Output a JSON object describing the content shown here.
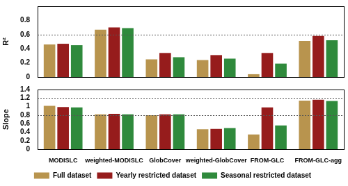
{
  "chart_data": [
    {
      "type": "bar",
      "y_label": "R²",
      "categories": [
        "MODISLC",
        "weighted-MODISLC",
        "GlobCover",
        "weighted-GlobCover",
        "FROM-GLC",
        "FROM-GLC-agg"
      ],
      "series": [
        {
          "name": "Full dataset",
          "color": "#b8944e",
          "values": [
            0.46,
            0.67,
            0.25,
            0.24,
            0.04,
            0.51
          ]
        },
        {
          "name": "Yearly restricted dataset",
          "color": "#961c1c",
          "values": [
            0.47,
            0.7,
            0.34,
            0.31,
            0.34,
            0.58
          ]
        },
        {
          "name": "Seasonal restricted dataset",
          "color": "#2f8a3c",
          "values": [
            0.45,
            0.69,
            0.28,
            0.26,
            0.19,
            0.52
          ]
        }
      ],
      "ylim": [
        0,
        1
      ],
      "yticks": [
        0,
        0.2,
        0.4,
        0.6,
        0.8
      ],
      "reference_lines": [
        0.6
      ],
      "grid": false,
      "tick_labels": "y"
    },
    {
      "type": "bar",
      "y_label": "Slope",
      "categories": [
        "MODISLC",
        "weighted-MODISLC",
        "GlobCover",
        "weighted-GlobCover",
        "FROM-GLC",
        "FROM-GLC-agg"
      ],
      "series": [
        {
          "name": "Full dataset",
          "color": "#b8944e",
          "values": [
            1.02,
            0.82,
            0.8,
            0.47,
            0.35,
            1.14
          ]
        },
        {
          "name": "Yearly restricted dataset",
          "color": "#961c1c",
          "values": [
            0.99,
            0.83,
            0.82,
            0.48,
            0.98,
            1.16
          ]
        },
        {
          "name": "Seasonal restricted dataset",
          "color": "#2f8a3c",
          "values": [
            0.98,
            0.82,
            0.82,
            0.5,
            0.56,
            1.13
          ]
        }
      ],
      "ylim": [
        0,
        1.4
      ],
      "yticks": [
        0,
        0.2,
        0.4,
        0.6,
        0.8,
        1,
        1.2,
        1.4
      ],
      "reference_lines": [
        0.8,
        1.2
      ],
      "grid": false,
      "legend": "bottom"
    }
  ]
}
